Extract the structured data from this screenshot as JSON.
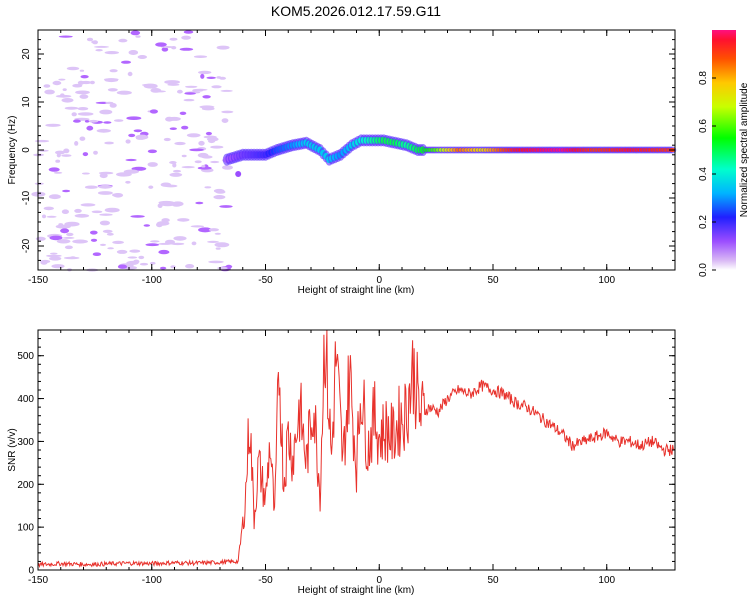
{
  "title": "KOM5.2026.012.17.59.G11",
  "chart_data": [
    {
      "type": "heatmap",
      "xlabel": "Height of straight line (km)",
      "ylabel": "Frequency (Hz)",
      "xlim": [
        -150,
        130
      ],
      "ylim": [
        -25,
        25
      ],
      "x_ticks": [
        -150,
        -100,
        -50,
        0,
        50,
        100
      ],
      "y_ticks": [
        -20,
        -10,
        0,
        10,
        20
      ],
      "colorbar": {
        "label": "Normalized spectral amplitude",
        "range": [
          0,
          1
        ],
        "ticks": [
          0.0,
          0.2,
          0.4,
          0.6,
          0.8
        ]
      },
      "ridge": [
        {
          "x": -67,
          "y": -2,
          "amp": 0.1
        },
        {
          "x": -60,
          "y": -1,
          "amp": 0.15
        },
        {
          "x": -50,
          "y": -1,
          "amp": 0.2
        },
        {
          "x": -45,
          "y": 0,
          "amp": 0.25
        },
        {
          "x": -38,
          "y": 1,
          "amp": 0.3
        },
        {
          "x": -32,
          "y": 1.5,
          "amp": 0.35
        },
        {
          "x": -26,
          "y": 0,
          "amp": 0.35
        },
        {
          "x": -22,
          "y": -2,
          "amp": 0.35
        },
        {
          "x": -17,
          "y": -1,
          "amp": 0.3
        },
        {
          "x": -12,
          "y": 1,
          "amp": 0.35
        },
        {
          "x": -8,
          "y": 2,
          "amp": 0.4
        },
        {
          "x": -3,
          "y": 2,
          "amp": 0.45
        },
        {
          "x": 2,
          "y": 2,
          "amp": 0.5
        },
        {
          "x": 7,
          "y": 1.5,
          "amp": 0.5
        },
        {
          "x": 12,
          "y": 1,
          "amp": 0.45
        },
        {
          "x": 17,
          "y": 0,
          "amp": 0.5
        },
        {
          "x": 25,
          "y": 0,
          "amp": 0.6
        },
        {
          "x": 35,
          "y": 0,
          "amp": 0.85
        },
        {
          "x": 45,
          "y": 0,
          "amp": 0.75
        },
        {
          "x": 60,
          "y": 0,
          "amp": 0.95
        },
        {
          "x": 80,
          "y": 0,
          "amp": 1.0
        },
        {
          "x": 95,
          "y": 0,
          "amp": 0.9
        },
        {
          "x": 110,
          "y": 0,
          "amp": 0.95
        },
        {
          "x": 130,
          "y": 0,
          "amp": 0.9
        }
      ]
    },
    {
      "type": "line",
      "xlabel": "Height of straight line (km)",
      "ylabel": "SNR (v/v)",
      "xlim": [
        -150,
        130
      ],
      "ylim": [
        0,
        560
      ],
      "x_ticks": [
        -150,
        -100,
        -50,
        0,
        50,
        100
      ],
      "y_ticks": [
        0,
        100,
        200,
        300,
        400,
        500
      ],
      "color": "#e8322c",
      "series": [
        {
          "x": [
            -150,
            -140,
            -130,
            -120,
            -110,
            -100,
            -90,
            -80,
            -70,
            -62,
            -59,
            -57,
            -55,
            -53,
            -50,
            -48,
            -46,
            -44,
            -42,
            -40,
            -38,
            -35,
            -32,
            -29,
            -26,
            -24,
            -21,
            -19,
            -16,
            -13,
            -10,
            -8,
            -5,
            -2,
            0,
            3,
            6,
            9,
            12,
            15,
            18,
            22,
            26,
            30,
            35,
            40,
            45,
            50,
            55,
            60,
            65,
            70,
            75,
            80,
            85,
            90,
            95,
            100,
            105,
            110,
            115,
            120,
            125,
            130
          ],
          "y": [
            12,
            15,
            13,
            14,
            16,
            15,
            17,
            16,
            18,
            20,
            150,
            360,
            120,
            250,
            160,
            300,
            120,
            480,
            200,
            320,
            260,
            380,
            250,
            400,
            180,
            560,
            260,
            500,
            250,
            460,
            240,
            430,
            280,
            360,
            310,
            330,
            310,
            350,
            370,
            470,
            360,
            380,
            370,
            400,
            420,
            410,
            430,
            420,
            410,
            390,
            380,
            360,
            340,
            320,
            290,
            300,
            310,
            320,
            300,
            300,
            290,
            300,
            280,
            280
          ]
        }
      ]
    }
  ]
}
